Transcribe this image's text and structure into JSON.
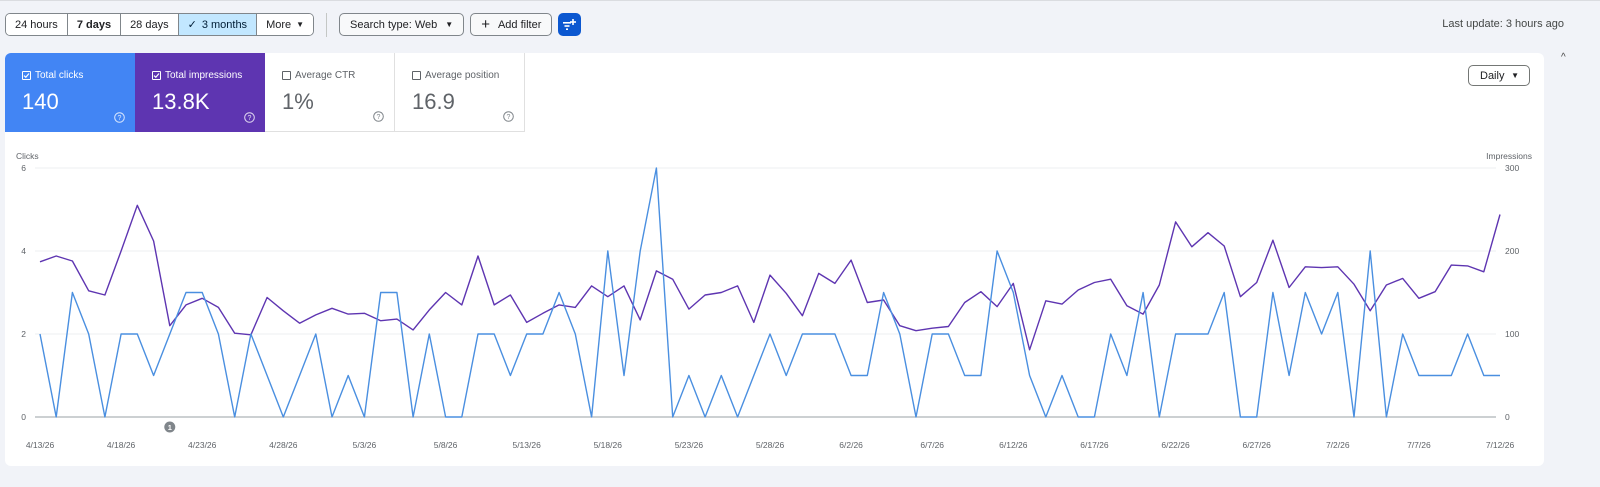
{
  "toolbar": {
    "ranges": [
      {
        "label": "24 hours",
        "bold": false,
        "selected": false
      },
      {
        "label": "7 days",
        "bold": true,
        "selected": false
      },
      {
        "label": "28 days",
        "bold": false,
        "selected": false
      },
      {
        "label": "3 months",
        "bold": false,
        "selected": true
      }
    ],
    "more_label": "More",
    "search_type_label": "Search type: Web",
    "add_filter_label": "Add filter",
    "last_update": "Last update: 3 hours ago"
  },
  "metrics": {
    "clicks": {
      "label": "Total clicks",
      "value": "140",
      "checked": true,
      "color": "#4285f4"
    },
    "impressions": {
      "label": "Total impressions",
      "value": "13.8K",
      "checked": true,
      "color": "#5e35b1"
    },
    "ctr": {
      "label": "Average CTR",
      "value": "1%",
      "checked": false
    },
    "position": {
      "label": "Average position",
      "value": "16.9",
      "checked": false
    }
  },
  "granularity": "Daily",
  "chart_data": {
    "type": "line",
    "left_axis_label": "Clicks",
    "right_axis_label": "Impressions",
    "left_ylim": [
      0,
      6
    ],
    "right_ylim": [
      0,
      300
    ],
    "left_ticks": [
      "0",
      "2",
      "4",
      "6"
    ],
    "right_ticks": [
      "0",
      "100",
      "200",
      "300"
    ],
    "x_tick_labels": [
      "4/13/26",
      "4/18/26",
      "4/23/26",
      "4/28/26",
      "5/3/26",
      "5/8/26",
      "5/13/26",
      "5/18/26",
      "5/23/26",
      "5/28/26",
      "6/2/26",
      "6/7/26",
      "6/12/26",
      "6/17/26",
      "6/22/26",
      "6/27/26",
      "7/2/26",
      "7/7/26",
      "7/12/26"
    ],
    "annotation": {
      "label": "1",
      "date": "4/21/26"
    },
    "grid": true,
    "series": [
      {
        "name": "Clicks",
        "axis": "left",
        "color": "#4a8fe0",
        "values": [
          2,
          0,
          3,
          2,
          0,
          2,
          2,
          1,
          2,
          3,
          3,
          2,
          0,
          2,
          1,
          0,
          1,
          2,
          0,
          1,
          0,
          3,
          3,
          0,
          2,
          0,
          0,
          2,
          2,
          1,
          2,
          2,
          3,
          2,
          0,
          4,
          1,
          4,
          6,
          0,
          1,
          0,
          1,
          0,
          1,
          2,
          1,
          2,
          2,
          2,
          1,
          1,
          3,
          2,
          0,
          2,
          2,
          1,
          1,
          4,
          3,
          1,
          0,
          1,
          0,
          0,
          2,
          1,
          3,
          0,
          2,
          2,
          2,
          3,
          0,
          0,
          3,
          1,
          3,
          2,
          3,
          0,
          4,
          0,
          2,
          1,
          1,
          1,
          2,
          1,
          1
        ]
      },
      {
        "name": "Impressions",
        "axis": "right",
        "color": "#5e35b1",
        "values": [
          187,
          194,
          188,
          152,
          147,
          200,
          255,
          212,
          110,
          135,
          143,
          132,
          101,
          99,
          144,
          128,
          113,
          123,
          131,
          124,
          125,
          116,
          118,
          105,
          129,
          150,
          135,
          194,
          135,
          147,
          114,
          125,
          135,
          132,
          158,
          145,
          158,
          117,
          176,
          166,
          130,
          147,
          150,
          158,
          114,
          171,
          149,
          122,
          173,
          161,
          189,
          138,
          141,
          110,
          104,
          107,
          109,
          138,
          151,
          133,
          161,
          81,
          140,
          136,
          153,
          162,
          166,
          134,
          124,
          159,
          235,
          205,
          222,
          206,
          145,
          162,
          213,
          156,
          181,
          180,
          181,
          160,
          128,
          159,
          167,
          143,
          151,
          183,
          182,
          175,
          244
        ]
      }
    ]
  }
}
